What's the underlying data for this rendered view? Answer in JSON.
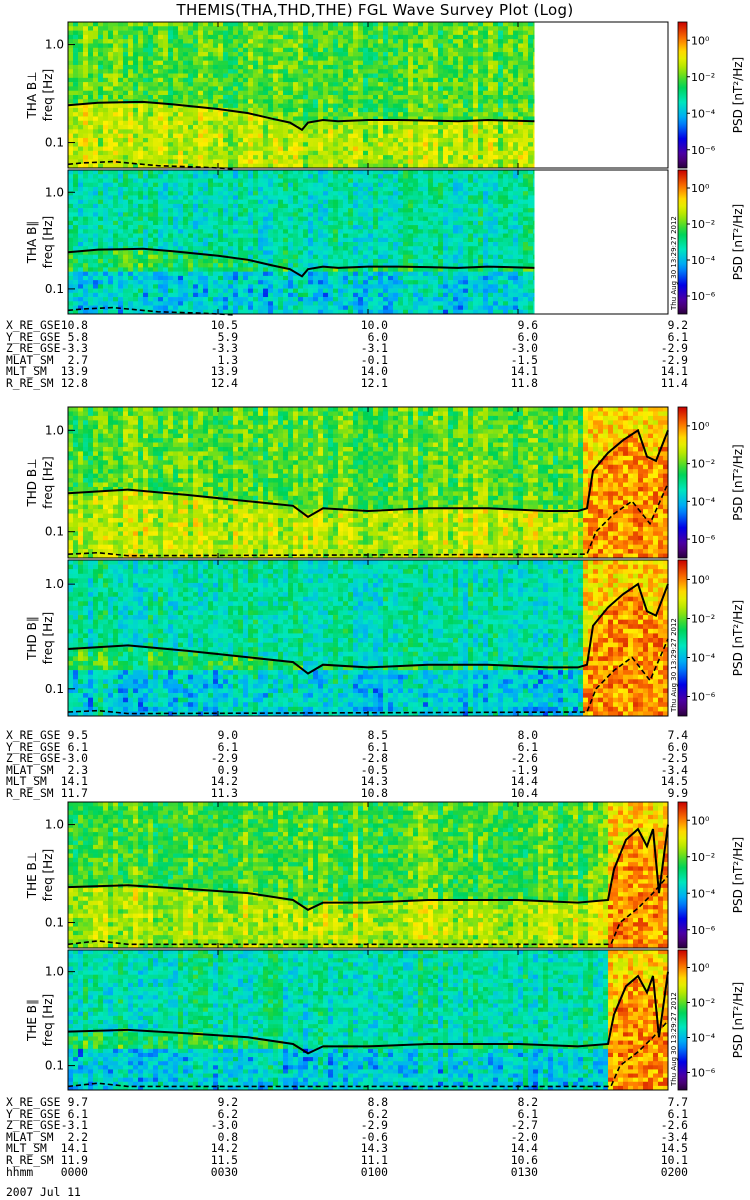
{
  "title": "THEMIS(THA,THD,THE) FGL Wave Survey Plot (Log)",
  "date_label": "2007 Jul 11",
  "timestamp": "Thu Aug 30 13:29:27 2012",
  "colors": {
    "line": "#000000",
    "frame": "#000000"
  },
  "chart_data": {
    "type": "heatmap",
    "x_label": "hhmm",
    "x_ticks": [
      "0000",
      "0030",
      "0100",
      "0130",
      "0200"
    ],
    "time_range_hours": [
      0,
      2
    ],
    "y_axis": {
      "label": "freq [Hz]",
      "scale": "log",
      "ylim": [
        0.055,
        1.7
      ],
      "tick_labels": [
        "0.1",
        "1.0"
      ]
    },
    "colorbar": {
      "label": "PSD [nT²/Hz]",
      "scale": "log",
      "range": [
        1e-07,
        10
      ],
      "tick_labels": [
        "10⁰",
        "10⁻²",
        "10⁻⁴",
        "10⁻⁶"
      ]
    },
    "panels": [
      {
        "name": "THA B⊥",
        "probe": "THA",
        "component": "perp",
        "data_end_hours": 1.555,
        "wave_burst": null,
        "solid_line": [
          [
            0,
            0.24
          ],
          [
            0.1,
            0.255
          ],
          [
            0.25,
            0.26
          ],
          [
            0.35,
            0.245
          ],
          [
            0.5,
            0.22
          ],
          [
            0.6,
            0.2
          ],
          [
            0.68,
            0.175
          ],
          [
            0.74,
            0.16
          ],
          [
            0.78,
            0.135
          ],
          [
            0.8,
            0.16
          ],
          [
            0.85,
            0.17
          ],
          [
            0.9,
            0.165
          ],
          [
            1.0,
            0.17
          ],
          [
            1.1,
            0.17
          ],
          [
            1.2,
            0.168
          ],
          [
            1.3,
            0.165
          ],
          [
            1.4,
            0.17
          ],
          [
            1.555,
            0.165
          ]
        ],
        "dashed_line": [
          [
            0,
            0.06
          ],
          [
            0.05,
            0.062
          ],
          [
            0.15,
            0.064
          ],
          [
            0.3,
            0.058
          ],
          [
            0.45,
            0.056
          ],
          [
            0.55,
            0.054
          ]
        ]
      },
      {
        "name": "THA B∥",
        "probe": "THA",
        "component": "par",
        "data_end_hours": 1.555,
        "wave_burst": null,
        "solid_line": [
          [
            0,
            0.24
          ],
          [
            0.1,
            0.255
          ],
          [
            0.25,
            0.26
          ],
          [
            0.35,
            0.245
          ],
          [
            0.5,
            0.22
          ],
          [
            0.6,
            0.2
          ],
          [
            0.68,
            0.175
          ],
          [
            0.74,
            0.16
          ],
          [
            0.78,
            0.135
          ],
          [
            0.8,
            0.16
          ],
          [
            0.85,
            0.17
          ],
          [
            0.9,
            0.165
          ],
          [
            1.0,
            0.17
          ],
          [
            1.1,
            0.17
          ],
          [
            1.2,
            0.168
          ],
          [
            1.3,
            0.165
          ],
          [
            1.4,
            0.17
          ],
          [
            1.555,
            0.165
          ]
        ],
        "dashed_line": [
          [
            0,
            0.06
          ],
          [
            0.05,
            0.062
          ],
          [
            0.15,
            0.064
          ],
          [
            0.3,
            0.058
          ],
          [
            0.45,
            0.056
          ],
          [
            0.55,
            0.054
          ]
        ]
      },
      {
        "name": "THD B⊥",
        "probe": "THD",
        "component": "perp",
        "data_end_hours": 2.0,
        "wave_burst": [
          1.72,
          2.0
        ],
        "solid_line": [
          [
            0,
            0.24
          ],
          [
            0.2,
            0.26
          ],
          [
            0.4,
            0.23
          ],
          [
            0.6,
            0.2
          ],
          [
            0.75,
            0.18
          ],
          [
            0.8,
            0.14
          ],
          [
            0.85,
            0.17
          ],
          [
            1.0,
            0.16
          ],
          [
            1.2,
            0.17
          ],
          [
            1.4,
            0.17
          ],
          [
            1.6,
            0.16
          ],
          [
            1.7,
            0.16
          ],
          [
            1.73,
            0.17
          ],
          [
            1.75,
            0.4
          ],
          [
            1.8,
            0.6
          ],
          [
            1.85,
            0.8
          ],
          [
            1.9,
            1.0
          ],
          [
            1.93,
            0.55
          ],
          [
            1.96,
            0.5
          ],
          [
            2.0,
            1.0
          ]
        ],
        "dashed_line": [
          [
            0,
            0.06
          ],
          [
            0.1,
            0.062
          ],
          [
            0.2,
            0.058
          ],
          [
            1.73,
            0.06
          ],
          [
            1.76,
            0.1
          ],
          [
            1.82,
            0.15
          ],
          [
            1.88,
            0.2
          ],
          [
            1.94,
            0.12
          ],
          [
            2.0,
            0.3
          ]
        ]
      },
      {
        "name": "THD B∥",
        "probe": "THD",
        "component": "par",
        "data_end_hours": 2.0,
        "wave_burst": [
          1.72,
          2.0
        ],
        "solid_line": [
          [
            0,
            0.24
          ],
          [
            0.2,
            0.26
          ],
          [
            0.4,
            0.23
          ],
          [
            0.6,
            0.2
          ],
          [
            0.75,
            0.18
          ],
          [
            0.8,
            0.14
          ],
          [
            0.85,
            0.17
          ],
          [
            1.0,
            0.16
          ],
          [
            1.2,
            0.17
          ],
          [
            1.4,
            0.17
          ],
          [
            1.6,
            0.16
          ],
          [
            1.7,
            0.16
          ],
          [
            1.73,
            0.17
          ],
          [
            1.75,
            0.4
          ],
          [
            1.8,
            0.6
          ],
          [
            1.85,
            0.8
          ],
          [
            1.9,
            1.0
          ],
          [
            1.93,
            0.55
          ],
          [
            1.96,
            0.5
          ],
          [
            2.0,
            1.0
          ]
        ],
        "dashed_line": [
          [
            0,
            0.06
          ],
          [
            0.1,
            0.062
          ],
          [
            0.2,
            0.058
          ],
          [
            1.73,
            0.06
          ],
          [
            1.76,
            0.1
          ],
          [
            1.82,
            0.15
          ],
          [
            1.88,
            0.2
          ],
          [
            1.94,
            0.12
          ],
          [
            2.0,
            0.3
          ]
        ]
      },
      {
        "name": "THE B⊥",
        "probe": "THE",
        "component": "perp",
        "data_end_hours": 2.0,
        "wave_burst": [
          1.8,
          2.0
        ],
        "solid_line": [
          [
            0,
            0.23
          ],
          [
            0.2,
            0.24
          ],
          [
            0.4,
            0.22
          ],
          [
            0.6,
            0.2
          ],
          [
            0.75,
            0.17
          ],
          [
            0.8,
            0.135
          ],
          [
            0.85,
            0.16
          ],
          [
            1.0,
            0.16
          ],
          [
            1.2,
            0.17
          ],
          [
            1.5,
            0.17
          ],
          [
            1.7,
            0.16
          ],
          [
            1.8,
            0.17
          ],
          [
            1.82,
            0.35
          ],
          [
            1.86,
            0.7
          ],
          [
            1.9,
            0.9
          ],
          [
            1.93,
            0.6
          ],
          [
            1.95,
            0.9
          ],
          [
            1.97,
            0.2
          ],
          [
            2.0,
            1.0
          ]
        ],
        "dashed_line": [
          [
            0,
            0.06
          ],
          [
            0.1,
            0.065
          ],
          [
            0.2,
            0.06
          ],
          [
            1.81,
            0.06
          ],
          [
            1.84,
            0.1
          ],
          [
            1.9,
            0.14
          ],
          [
            1.95,
            0.2
          ],
          [
            2.0,
            0.3
          ]
        ]
      },
      {
        "name": "THE B∥",
        "probe": "THE",
        "component": "par",
        "data_end_hours": 2.0,
        "wave_burst": [
          1.8,
          2.0
        ],
        "solid_line": [
          [
            0,
            0.23
          ],
          [
            0.2,
            0.24
          ],
          [
            0.4,
            0.22
          ],
          [
            0.6,
            0.2
          ],
          [
            0.75,
            0.17
          ],
          [
            0.8,
            0.135
          ],
          [
            0.85,
            0.16
          ],
          [
            1.0,
            0.16
          ],
          [
            1.2,
            0.17
          ],
          [
            1.5,
            0.17
          ],
          [
            1.7,
            0.16
          ],
          [
            1.8,
            0.17
          ],
          [
            1.82,
            0.35
          ],
          [
            1.86,
            0.7
          ],
          [
            1.9,
            0.9
          ],
          [
            1.93,
            0.6
          ],
          [
            1.95,
            0.9
          ],
          [
            1.97,
            0.2
          ],
          [
            2.0,
            1.0
          ]
        ],
        "dashed_line": [
          [
            0,
            0.06
          ],
          [
            0.1,
            0.065
          ],
          [
            0.2,
            0.06
          ],
          [
            1.81,
            0.06
          ],
          [
            1.84,
            0.1
          ],
          [
            1.9,
            0.14
          ],
          [
            1.95,
            0.2
          ],
          [
            2.0,
            0.3
          ]
        ]
      }
    ],
    "ephemeris": [
      {
        "probe": "THA",
        "rows": [
          {
            "label": "X_RE_GSE",
            "values": [
              "10.8",
              "10.5",
              "10.0",
              "9.6",
              "9.2"
            ]
          },
          {
            "label": "Y_RE_GSE",
            "values": [
              "5.8",
              "5.9",
              "6.0",
              "6.0",
              "6.1"
            ]
          },
          {
            "label": "Z_RE_GSE",
            "values": [
              "-3.3",
              "-3.3",
              "-3.1",
              "-3.0",
              "-2.9"
            ]
          },
          {
            "label": "MLAT_SM",
            "values": [
              "2.7",
              "1.3",
              "-0.1",
              "-1.5",
              "-2.9"
            ]
          },
          {
            "label": "MLT_SM",
            "values": [
              "13.9",
              "13.9",
              "14.0",
              "14.1",
              "14.1"
            ]
          },
          {
            "label": "R_RE_SM",
            "values": [
              "12.8",
              "12.4",
              "12.1",
              "11.8",
              "11.4"
            ]
          }
        ]
      },
      {
        "probe": "THD",
        "rows": [
          {
            "label": "X_RE_GSE",
            "values": [
              "9.5",
              "9.0",
              "8.5",
              "8.0",
              "7.4"
            ]
          },
          {
            "label": "Y_RE_GSE",
            "values": [
              "6.1",
              "6.1",
              "6.1",
              "6.1",
              "6.0"
            ]
          },
          {
            "label": "Z_RE_GSE",
            "values": [
              "-3.0",
              "-2.9",
              "-2.8",
              "-2.6",
              "-2.5"
            ]
          },
          {
            "label": "MLAT_SM",
            "values": [
              "2.3",
              "0.9",
              "-0.5",
              "-1.9",
              "-3.4"
            ]
          },
          {
            "label": "MLT_SM",
            "values": [
              "14.1",
              "14.2",
              "14.3",
              "14.4",
              "14.5"
            ]
          },
          {
            "label": "R_RE_SM",
            "values": [
              "11.7",
              "11.3",
              "10.8",
              "10.4",
              "9.9"
            ]
          }
        ]
      },
      {
        "probe": "THE",
        "rows": [
          {
            "label": "X_RE_GSE",
            "values": [
              "9.7",
              "9.2",
              "8.8",
              "8.2",
              "7.7"
            ]
          },
          {
            "label": "Y_RE_GSE",
            "values": [
              "6.1",
              "6.2",
              "6.2",
              "6.1",
              "6.1"
            ]
          },
          {
            "label": "Z_RE_GSE",
            "values": [
              "-3.1",
              "-3.0",
              "-2.9",
              "-2.7",
              "-2.6"
            ]
          },
          {
            "label": "MLAT_SM",
            "values": [
              "2.2",
              "0.8",
              "-0.6",
              "-2.0",
              "-3.4"
            ]
          },
          {
            "label": "MLT_SM",
            "values": [
              "14.1",
              "14.2",
              "14.3",
              "14.4",
              "14.5"
            ]
          },
          {
            "label": "R_RE_SM",
            "values": [
              "11.9",
              "11.5",
              "11.1",
              "10.6",
              "10.1"
            ]
          }
        ]
      }
    ]
  }
}
